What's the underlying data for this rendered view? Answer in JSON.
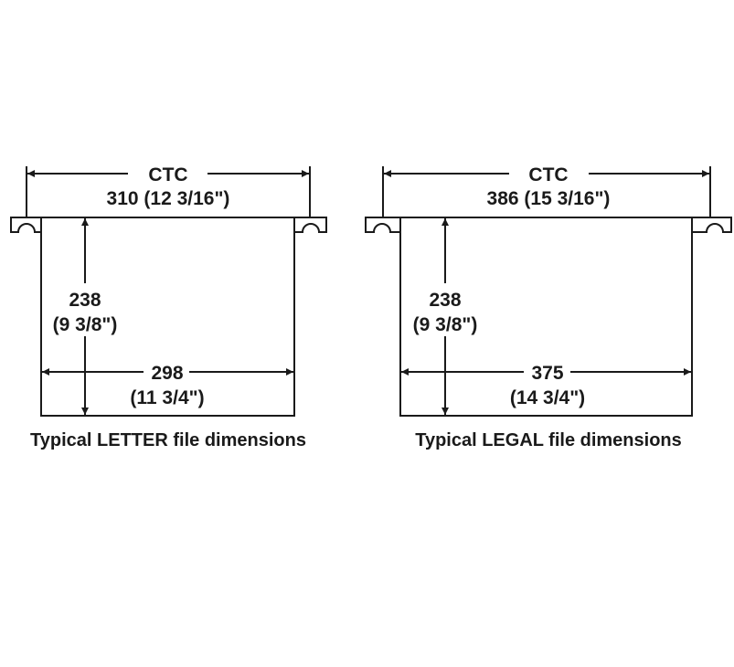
{
  "diagrams": [
    {
      "ctc_label": "CTC",
      "ctc_value": "310 (12 3/16\")",
      "height_value": "238",
      "height_inches": "(9 3/8\")",
      "width_value": "298",
      "width_inches": "(11 3/4\")",
      "caption": "Typical LETTER file dimensions"
    },
    {
      "ctc_label": "CTC",
      "ctc_value": "386 (15 3/16\")",
      "height_value": "238",
      "height_inches": "(9 3/8\")",
      "width_value": "375",
      "width_inches": "(14 3/4\")",
      "caption": "Typical LEGAL file dimensions"
    }
  ]
}
